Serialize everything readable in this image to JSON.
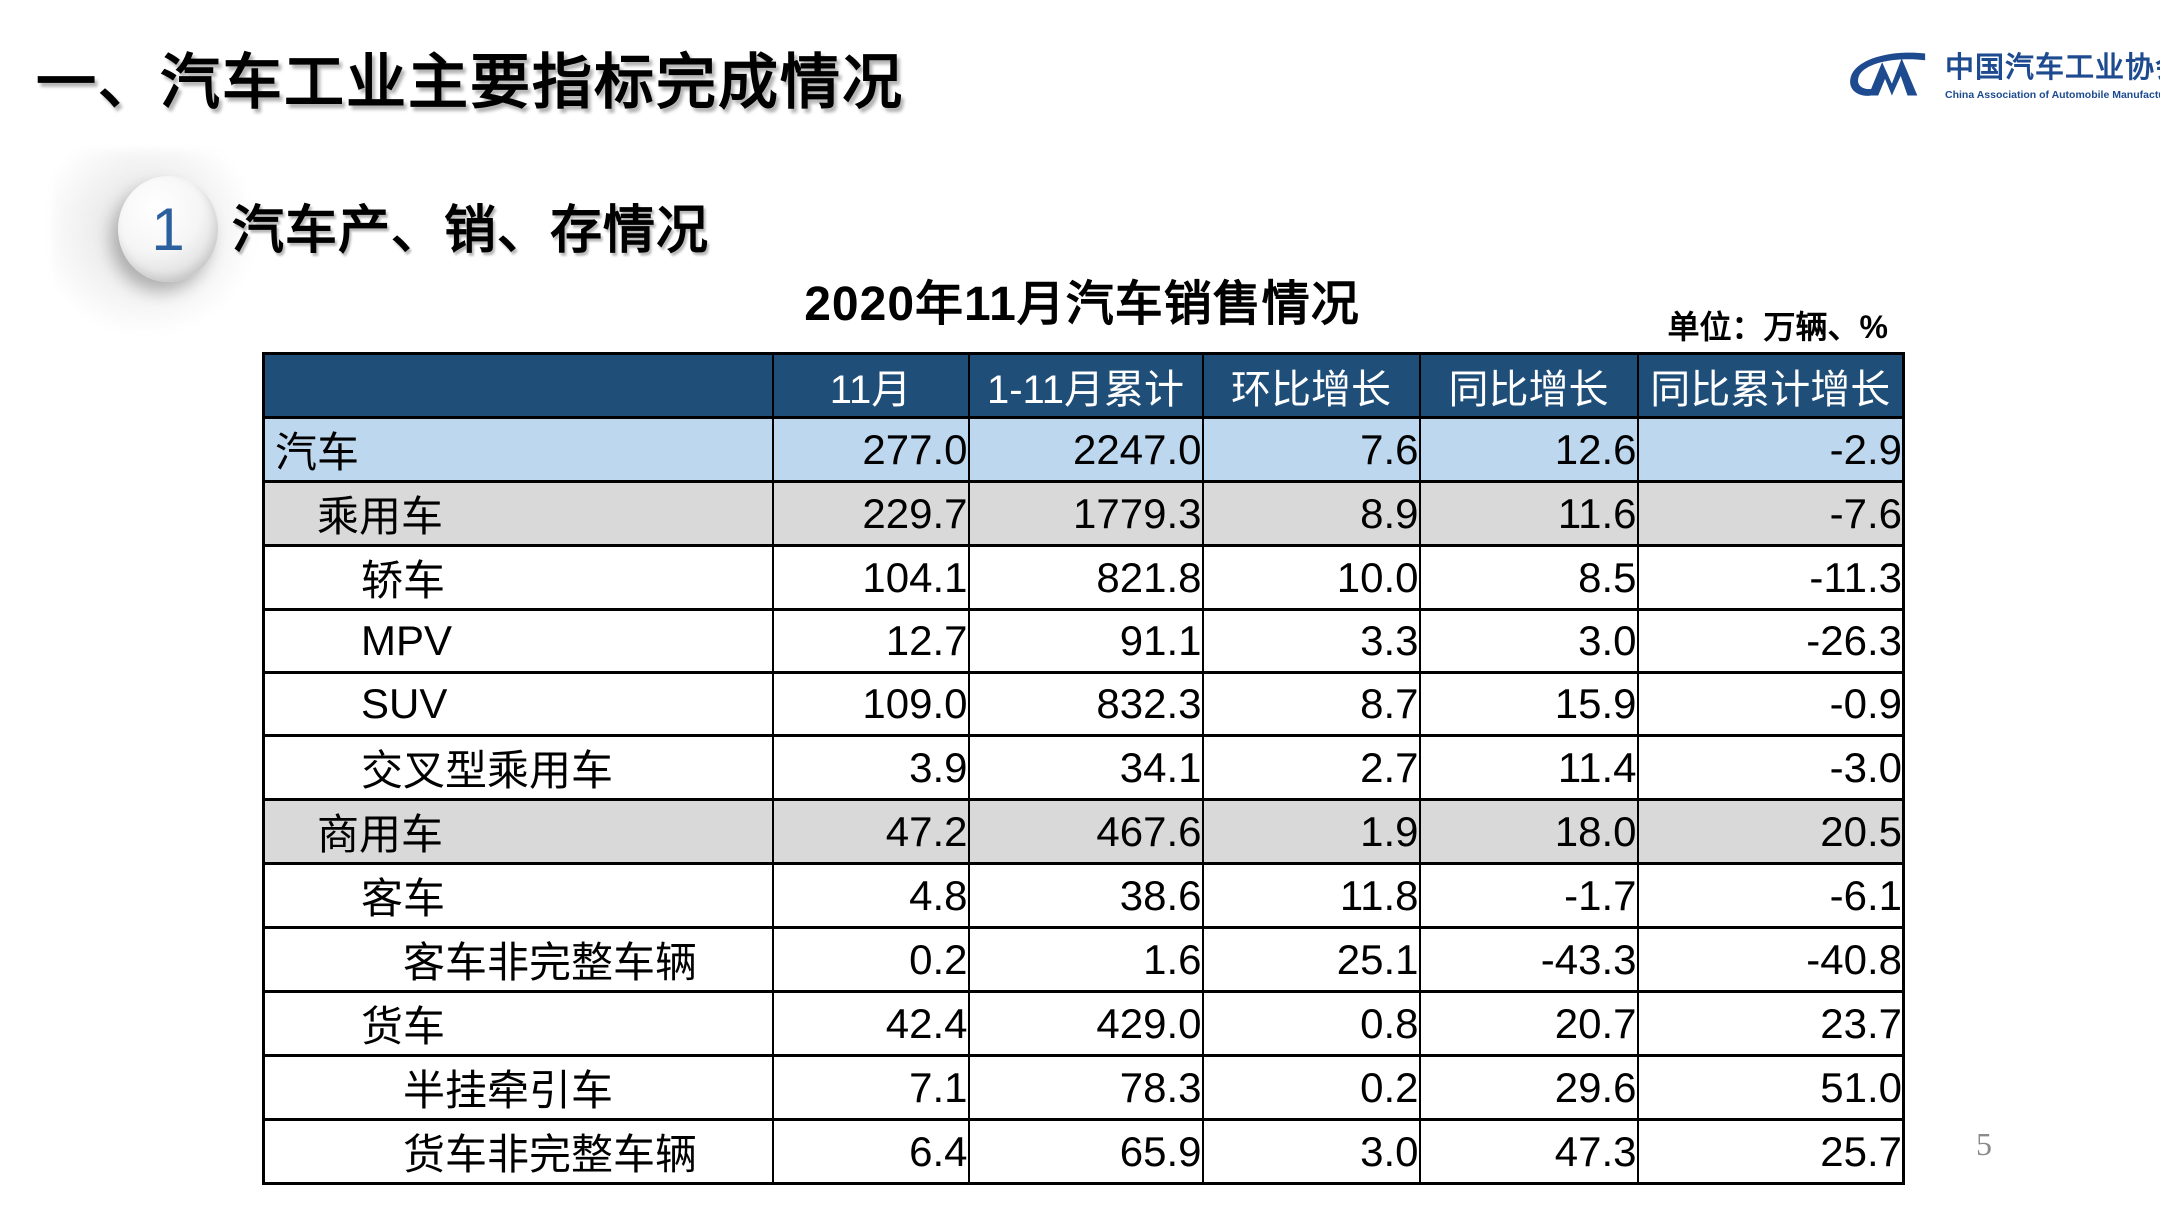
{
  "slide": {
    "title": "一、汽车工业主要指标完成情况",
    "page_number": "5"
  },
  "logo": {
    "name_cn": "中国汽车工业协会",
    "name_en": "China Association of Automobile Manufacturers"
  },
  "section": {
    "badge_number": "1",
    "heading": "汽车产、销、存情况"
  },
  "table": {
    "title": "2020年11月汽车销售情况",
    "unit_note": "单位：万辆、%",
    "columns": [
      "",
      "11月",
      "1-11月累计",
      "环比增长",
      "同比增长",
      "同比累计增长"
    ],
    "rows": [
      {
        "label": "汽车",
        "level": 0,
        "bg": "blue",
        "values": [
          "277.0",
          "2247.0",
          "7.6",
          "12.6",
          "-2.9"
        ]
      },
      {
        "label": "乘用车",
        "level": 1,
        "bg": "gray",
        "values": [
          "229.7",
          "1779.3",
          "8.9",
          "11.6",
          "-7.6"
        ]
      },
      {
        "label": "轿车",
        "level": 2,
        "bg": "white",
        "values": [
          "104.1",
          "821.8",
          "10.0",
          "8.5",
          "-11.3"
        ]
      },
      {
        "label": "MPV",
        "level": 2,
        "bg": "white",
        "values": [
          "12.7",
          "91.1",
          "3.3",
          "3.0",
          "-26.3"
        ]
      },
      {
        "label": "SUV",
        "level": 2,
        "bg": "white",
        "values": [
          "109.0",
          "832.3",
          "8.7",
          "15.9",
          "-0.9"
        ]
      },
      {
        "label": "交叉型乘用车",
        "level": 2,
        "bg": "white",
        "values": [
          "3.9",
          "34.1",
          "2.7",
          "11.4",
          "-3.0"
        ]
      },
      {
        "label": "商用车",
        "level": 1,
        "bg": "gray",
        "values": [
          "47.2",
          "467.6",
          "1.9",
          "18.0",
          "20.5"
        ]
      },
      {
        "label": "客车",
        "level": 2,
        "bg": "white",
        "values": [
          "4.8",
          "38.6",
          "11.8",
          "-1.7",
          "-6.1"
        ]
      },
      {
        "label": "客车非完整车辆",
        "level": 3,
        "bg": "white",
        "values": [
          "0.2",
          "1.6",
          "25.1",
          "-43.3",
          "-40.8"
        ]
      },
      {
        "label": "货车",
        "level": 2,
        "bg": "white",
        "values": [
          "42.4",
          "429.0",
          "0.8",
          "20.7",
          "23.7"
        ]
      },
      {
        "label": "半挂牵引车",
        "level": 3,
        "bg": "white",
        "values": [
          "7.1",
          "78.3",
          "0.2",
          "29.6",
          "51.0"
        ]
      },
      {
        "label": "货车非完整车辆",
        "level": 3,
        "bg": "white",
        "values": [
          "6.4",
          "65.9",
          "3.0",
          "47.3",
          "25.7"
        ]
      }
    ]
  },
  "colors": {
    "header_bg": "#1F4E79",
    "highlight_row_bg": "#BDD7EE",
    "subtotal_row_bg": "#D9D9D9",
    "logo_blue": "#1E4B8F",
    "badge_blue": "#2C5F9E",
    "page_number_gray": "#8A8A8A"
  }
}
